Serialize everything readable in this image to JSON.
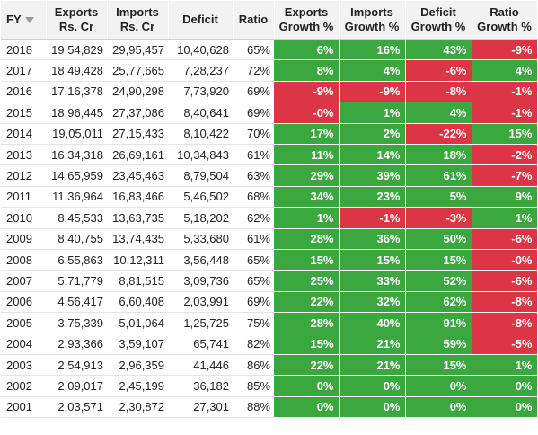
{
  "colors": {
    "positive": "#3aa83e",
    "negative": "#dc3545"
  },
  "header": {
    "fy": "FY",
    "exports_l1": "Exports",
    "exports_l2": "Rs. Cr",
    "imports_l1": "Imports",
    "imports_l2": "Rs. Cr",
    "deficit": "Deficit",
    "ratio": "Ratio",
    "eg_l1": "Exports",
    "eg_l2": "Growth %",
    "ig_l1": "Imports",
    "ig_l2": "Growth %",
    "dg_l1": "Deficit",
    "dg_l2": "Growth %",
    "rg_l1": "Ratio",
    "rg_l2": "Growth %",
    "sort_icon": "sort-desc-icon"
  },
  "rows": [
    {
      "fy": "2018",
      "exports": "19,54,829",
      "imports": "29,95,457",
      "deficit": "10,40,628",
      "ratio": "65%",
      "eg": "6%",
      "ig": "16%",
      "dg": "43%",
      "rg": "-9%"
    },
    {
      "fy": "2017",
      "exports": "18,49,428",
      "imports": "25,77,665",
      "deficit": "7,28,237",
      "ratio": "72%",
      "eg": "8%",
      "ig": "4%",
      "dg": "-6%",
      "rg": "4%"
    },
    {
      "fy": "2016",
      "exports": "17,16,378",
      "imports": "24,90,298",
      "deficit": "7,73,920",
      "ratio": "69%",
      "eg": "-9%",
      "ig": "-9%",
      "dg": "-8%",
      "rg": "-1%"
    },
    {
      "fy": "2015",
      "exports": "18,96,445",
      "imports": "27,37,086",
      "deficit": "8,40,641",
      "ratio": "69%",
      "eg": "-0%",
      "ig": "1%",
      "dg": "4%",
      "rg": "-1%"
    },
    {
      "fy": "2014",
      "exports": "19,05,011",
      "imports": "27,15,433",
      "deficit": "8,10,422",
      "ratio": "70%",
      "eg": "17%",
      "ig": "2%",
      "dg": "-22%",
      "rg": "15%"
    },
    {
      "fy": "2013",
      "exports": "16,34,318",
      "imports": "26,69,161",
      "deficit": "10,34,843",
      "ratio": "61%",
      "eg": "11%",
      "ig": "14%",
      "dg": "18%",
      "rg": "-2%"
    },
    {
      "fy": "2012",
      "exports": "14,65,959",
      "imports": "23,45,463",
      "deficit": "8,79,504",
      "ratio": "63%",
      "eg": "29%",
      "ig": "39%",
      "dg": "61%",
      "rg": "-7%"
    },
    {
      "fy": "2011",
      "exports": "11,36,964",
      "imports": "16,83,466",
      "deficit": "5,46,502",
      "ratio": "68%",
      "eg": "34%",
      "ig": "23%",
      "dg": "5%",
      "rg": "9%"
    },
    {
      "fy": "2010",
      "exports": "8,45,533",
      "imports": "13,63,735",
      "deficit": "5,18,202",
      "ratio": "62%",
      "eg": "1%",
      "ig": "-1%",
      "dg": "-3%",
      "rg": "1%"
    },
    {
      "fy": "2009",
      "exports": "8,40,755",
      "imports": "13,74,435",
      "deficit": "5,33,680",
      "ratio": "61%",
      "eg": "28%",
      "ig": "36%",
      "dg": "50%",
      "rg": "-6%"
    },
    {
      "fy": "2008",
      "exports": "6,55,863",
      "imports": "10,12,311",
      "deficit": "3,56,448",
      "ratio": "65%",
      "eg": "15%",
      "ig": "15%",
      "dg": "15%",
      "rg": "-0%"
    },
    {
      "fy": "2007",
      "exports": "5,71,779",
      "imports": "8,81,515",
      "deficit": "3,09,736",
      "ratio": "65%",
      "eg": "25%",
      "ig": "33%",
      "dg": "52%",
      "rg": "-6%"
    },
    {
      "fy": "2006",
      "exports": "4,56,417",
      "imports": "6,60,408",
      "deficit": "2,03,991",
      "ratio": "69%",
      "eg": "22%",
      "ig": "32%",
      "dg": "62%",
      "rg": "-8%"
    },
    {
      "fy": "2005",
      "exports": "3,75,339",
      "imports": "5,01,064",
      "deficit": "1,25,725",
      "ratio": "75%",
      "eg": "28%",
      "ig": "40%",
      "dg": "91%",
      "rg": "-8%"
    },
    {
      "fy": "2004",
      "exports": "2,93,366",
      "imports": "3,59,107",
      "deficit": "65,741",
      "ratio": "82%",
      "eg": "15%",
      "ig": "21%",
      "dg": "59%",
      "rg": "-5%"
    },
    {
      "fy": "2003",
      "exports": "2,54,913",
      "imports": "2,96,359",
      "deficit": "41,446",
      "ratio": "86%",
      "eg": "22%",
      "ig": "21%",
      "dg": "15%",
      "rg": "1%"
    },
    {
      "fy": "2002",
      "exports": "2,09,017",
      "imports": "2,45,199",
      "deficit": "36,182",
      "ratio": "85%",
      "eg": "0%",
      "ig": "0%",
      "dg": "0%",
      "rg": "0%"
    },
    {
      "fy": "2001",
      "exports": "2,03,571",
      "imports": "2,30,872",
      "deficit": "27,301",
      "ratio": "88%",
      "eg": "0%",
      "ig": "0%",
      "dg": "0%",
      "rg": "0%"
    }
  ]
}
